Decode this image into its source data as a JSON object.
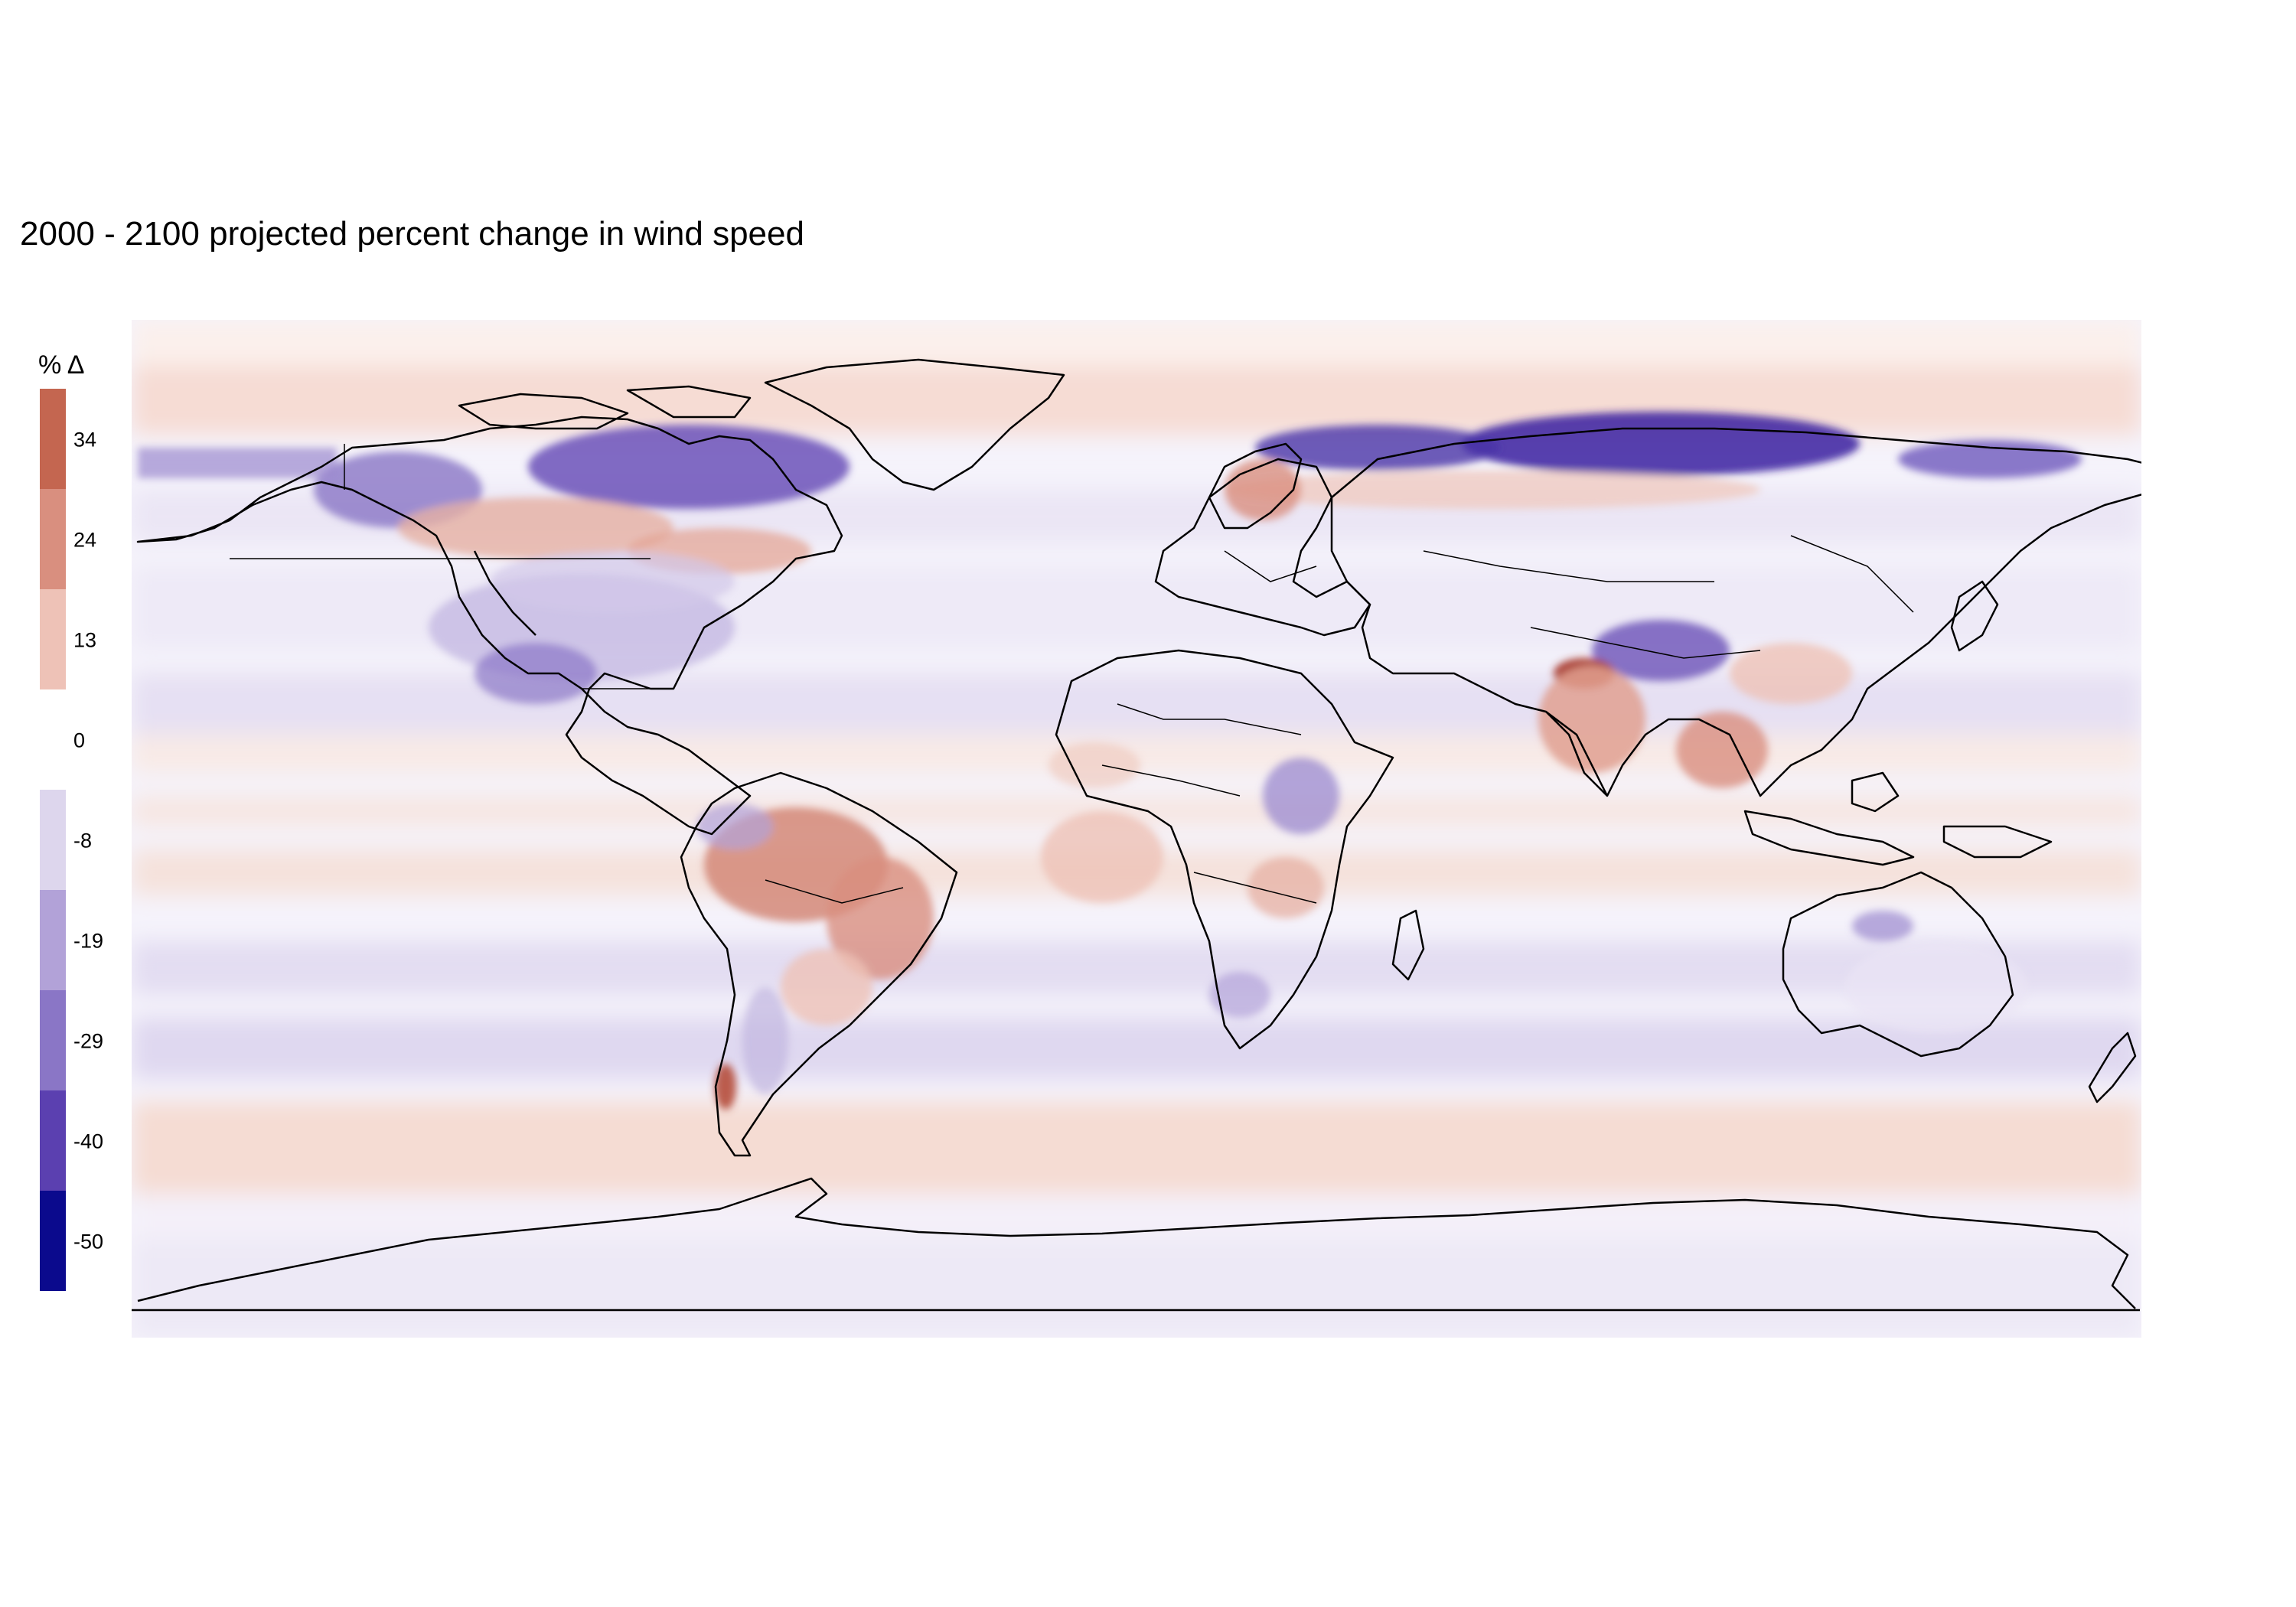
{
  "title": "2000 - 2100 projected percent change in wind speed",
  "legend": {
    "title": "% Δ",
    "bins": [
      {
        "label": "34",
        "color": "#c46650"
      },
      {
        "label": "24",
        "color": "#d98f7f"
      },
      {
        "label": "13",
        "color": "#eec2b7"
      },
      {
        "label": "0",
        "color": "#ffffff"
      },
      {
        "label": "-8",
        "color": "#ddd6ed"
      },
      {
        "label": "-19",
        "color": "#b2a2d8"
      },
      {
        "label": "-29",
        "color": "#8a76c6"
      },
      {
        "label": "-40",
        "color": "#5b40b0"
      },
      {
        "label": "-50",
        "color": "#0b0a8d"
      }
    ]
  },
  "map": {
    "projection": "equirectangular",
    "extent": {
      "lon": [
        -180,
        180
      ],
      "lat": [
        -90,
        90
      ]
    },
    "colors": {
      "ocean_base": "#f5f3fb",
      "positive_band": "#f6e0d8",
      "negative_band": "#e4def3",
      "outline": "#000000"
    },
    "regions": [
      {
        "name": "Northern Canada / Hudson Bay",
        "sign": "negative",
        "strength": 0.7
      },
      {
        "name": "Northern Siberia",
        "sign": "negative",
        "strength": 0.85
      },
      {
        "name": "Amazon Basin",
        "sign": "positive",
        "strength": 0.65
      },
      {
        "name": "Indo-Gangetic Plain",
        "sign": "positive",
        "strength": 0.95
      },
      {
        "name": "Tibetan Plateau",
        "sign": "negative",
        "strength": 0.6
      },
      {
        "name": "Southern Ocean band",
        "sign": "positive",
        "strength": 0.3
      },
      {
        "name": "Scandinavia",
        "sign": "positive",
        "strength": 0.5
      }
    ]
  }
}
